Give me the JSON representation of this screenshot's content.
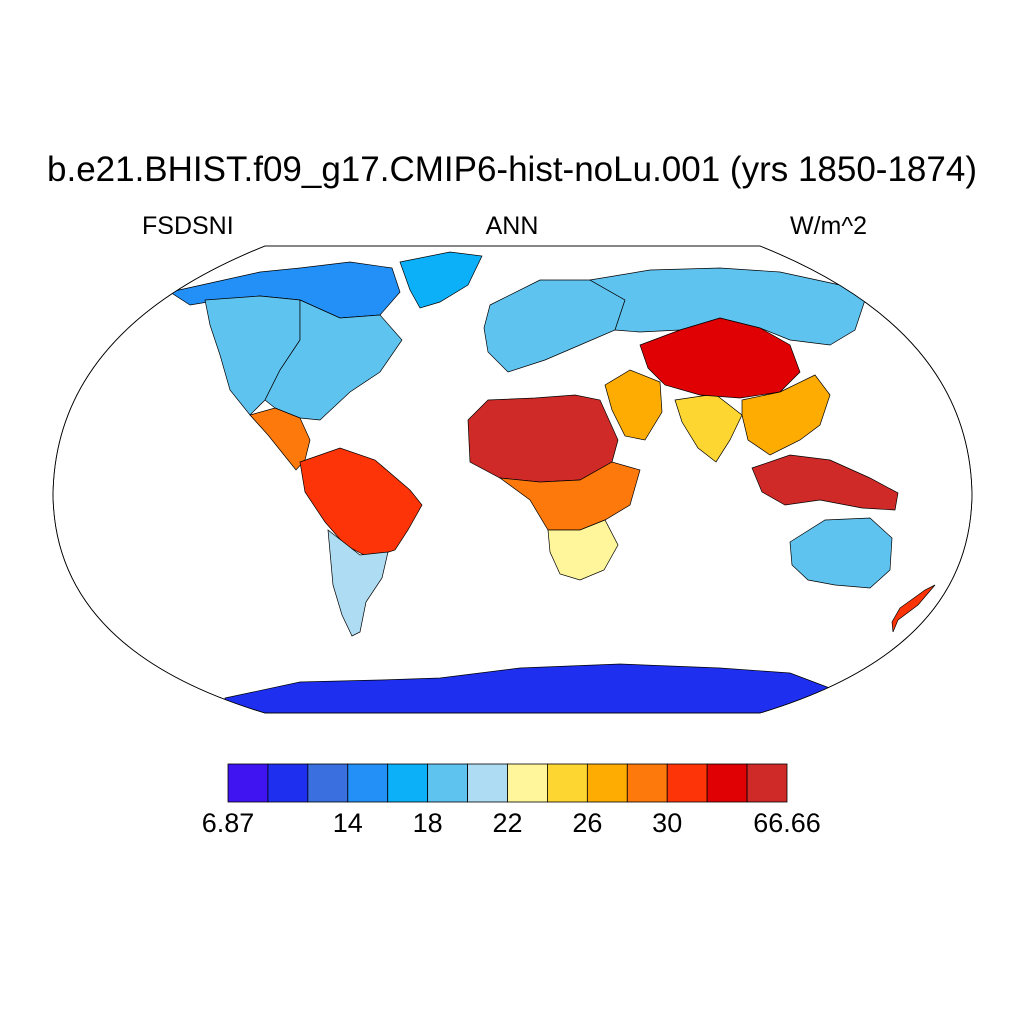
{
  "title": "b.e21.BHIST.f09_g17.CMIP6-hist-noLu.001 (yrs 1850-1874)",
  "subtitle": {
    "left": "FSDSNI",
    "center": "ANN",
    "right": "W/m^2"
  },
  "colorbar": {
    "colors": [
      "#3f14f0",
      "#1f2ff0",
      "#3a6fe0",
      "#2390f8",
      "#0cb0f8",
      "#5fc3f0",
      "#aedcf2",
      "#fff59a",
      "#fed631",
      "#feac01",
      "#fd790c",
      "#fd3407",
      "#df0103",
      "#d02a28"
    ],
    "labels": [
      {
        "text": "6.87",
        "boundary": 0
      },
      {
        "text": "14",
        "boundary": 3
      },
      {
        "text": "18",
        "boundary": 5
      },
      {
        "text": "22",
        "boundary": 7
      },
      {
        "text": "26",
        "boundary": 9
      },
      {
        "text": "30",
        "boundary": 11
      },
      {
        "text": "66.66",
        "boundary": 14
      }
    ]
  },
  "map_regions": [
    {
      "name": "north-america-north",
      "level": 3
    },
    {
      "name": "north-america-west",
      "level": 5
    },
    {
      "name": "north-america-east",
      "level": 5
    },
    {
      "name": "greenland",
      "level": 4
    },
    {
      "name": "central-america",
      "level": 10
    },
    {
      "name": "south-america-north",
      "level": 11
    },
    {
      "name": "south-america-south",
      "level": 6
    },
    {
      "name": "europe",
      "level": 5
    },
    {
      "name": "siberia",
      "level": 5
    },
    {
      "name": "sahara",
      "level": 13
    },
    {
      "name": "central-africa",
      "level": 10
    },
    {
      "name": "southern-africa",
      "level": 7
    },
    {
      "name": "arabia",
      "level": 9
    },
    {
      "name": "india",
      "level": 8
    },
    {
      "name": "tibet",
      "level": 12
    },
    {
      "name": "southeast-asia",
      "level": 9
    },
    {
      "name": "indonesia",
      "level": 13
    },
    {
      "name": "australia",
      "level": 5
    },
    {
      "name": "new-zealand",
      "level": 11
    },
    {
      "name": "antarctica",
      "level": 1
    }
  ]
}
